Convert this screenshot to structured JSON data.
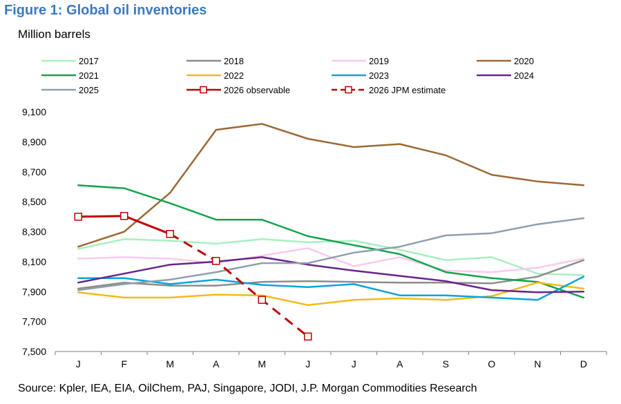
{
  "chart_data": {
    "type": "line",
    "title": "Figure 1: Global oil inventories",
    "subtitle": "Million barrels",
    "source": "Source: Kpler, IEA, EIA, OilChem, PAJ, Singapore, JODI, J.P. Morgan Commodities Research",
    "categories": [
      "J",
      "F",
      "M",
      "A",
      "M",
      "J",
      "J",
      "A",
      "S",
      "O",
      "N",
      "D"
    ],
    "ylim": [
      7500,
      9100
    ],
    "yticks": [
      7500,
      7700,
      7900,
      8100,
      8300,
      8500,
      8700,
      8900,
      9100
    ],
    "ytick_labels": [
      "7,500",
      "7,700",
      "7,900",
      "8,100",
      "8,300",
      "8,500",
      "8,700",
      "8,900",
      "9,100"
    ],
    "legend_position": "top",
    "series": [
      {
        "name": "2017",
        "color": "#a6f0c0",
        "dash": "solid",
        "marker": "none",
        "values": [
          8185,
          8250,
          8240,
          8220,
          8250,
          8230,
          8240,
          8180,
          8110,
          8130,
          8020,
          8010
        ]
      },
      {
        "name": "2018",
        "color": "#8c8c8c",
        "dash": "solid",
        "marker": "none",
        "values": [
          7920,
          7960,
          7940,
          7940,
          7965,
          7970,
          7965,
          7960,
          7960,
          7955,
          8000,
          8110
        ]
      },
      {
        "name": "2019",
        "color": "#f9c9f0",
        "dash": "solid",
        "marker": "none",
        "values": [
          8120,
          8130,
          8120,
          8090,
          8140,
          8190,
          8070,
          8130,
          8040,
          8030,
          8060,
          8120
        ]
      },
      {
        "name": "2020",
        "color": "#9c6833",
        "dash": "solid",
        "marker": "none",
        "values": [
          8200,
          8300,
          8560,
          8980,
          9020,
          8920,
          8865,
          8885,
          8810,
          8680,
          8635,
          8610
        ]
      },
      {
        "name": "2021",
        "color": "#13a34d",
        "dash": "solid",
        "marker": "none",
        "values": [
          8610,
          8590,
          8490,
          8380,
          8380,
          8270,
          8210,
          8150,
          8030,
          7990,
          7965,
          7860
        ]
      },
      {
        "name": "2022",
        "color": "#f4ba17",
        "dash": "solid",
        "marker": "none",
        "values": [
          7895,
          7860,
          7860,
          7880,
          7875,
          7810,
          7845,
          7855,
          7845,
          7870,
          7960,
          7920
        ]
      },
      {
        "name": "2023",
        "color": "#0aa3dc",
        "dash": "solid",
        "marker": "none",
        "values": [
          7990,
          7990,
          7950,
          7980,
          7945,
          7930,
          7950,
          7875,
          7875,
          7860,
          7845,
          8000
        ]
      },
      {
        "name": "2024",
        "color": "#6a2289",
        "dash": "solid",
        "marker": "none",
        "values": [
          7960,
          8020,
          8080,
          8100,
          8130,
          8080,
          8040,
          8005,
          7970,
          7910,
          7895,
          7900
        ]
      },
      {
        "name": "2025",
        "color": "#8f9fad",
        "dash": "solid",
        "marker": "none",
        "values": [
          7910,
          7950,
          7980,
          8030,
          8090,
          8090,
          8160,
          8200,
          8275,
          8290,
          8350,
          8390
        ]
      },
      {
        "name": "2026 observable",
        "color": "#c00000",
        "dash": "solid",
        "marker": "square",
        "values": [
          8400,
          8405,
          8285,
          null,
          null,
          null,
          null,
          null,
          null,
          null,
          null,
          null
        ]
      },
      {
        "name": "2026 JPM estimate",
        "color": "#c00000",
        "dash": "dashed",
        "marker": "square",
        "values": [
          null,
          null,
          8285,
          8105,
          7845,
          7600,
          null,
          null,
          null,
          null,
          null,
          null
        ]
      }
    ]
  }
}
